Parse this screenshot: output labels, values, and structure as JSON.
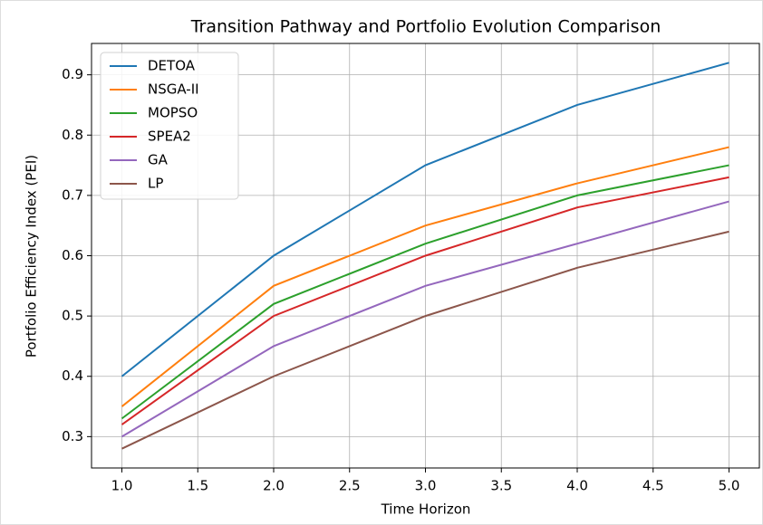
{
  "chart_data": {
    "type": "line",
    "title": "Transition Pathway and Portfolio Evolution Comparison",
    "x_label": "Time Horizon",
    "y_label": "Portfolio Efficiency Index (PEI)",
    "x": [
      1,
      2,
      3,
      4,
      5
    ],
    "series": [
      {
        "name": "DETOA",
        "color": "#1f77b4",
        "values": [
          0.4,
          0.6,
          0.75,
          0.85,
          0.92
        ]
      },
      {
        "name": "NSGA-II",
        "color": "#ff7f0e",
        "values": [
          0.35,
          0.55,
          0.65,
          0.72,
          0.78
        ]
      },
      {
        "name": "MOPSO",
        "color": "#2ca02c",
        "values": [
          0.33,
          0.52,
          0.62,
          0.7,
          0.75
        ]
      },
      {
        "name": "SPEA2",
        "color": "#d62728",
        "values": [
          0.32,
          0.5,
          0.6,
          0.68,
          0.73
        ]
      },
      {
        "name": "GA",
        "color": "#9467bd",
        "values": [
          0.3,
          0.45,
          0.55,
          0.62,
          0.69
        ]
      },
      {
        "name": "LP",
        "color": "#8c564b",
        "values": [
          0.28,
          0.4,
          0.5,
          0.58,
          0.64
        ]
      }
    ],
    "xlim": [
      0.8,
      5.2
    ],
    "ylim": [
      0.248,
      0.952
    ],
    "xticks": [
      {
        "value": 1,
        "label": "1.0"
      },
      1.5,
      {
        "value": 2,
        "label": "2.0"
      },
      2.5,
      {
        "value": 3,
        "label": "3.0"
      },
      3.5,
      {
        "value": 4,
        "label": "4.0"
      },
      4.5,
      {
        "value": 5,
        "label": "5.0"
      }
    ],
    "yticks": [
      0.3,
      0.4,
      0.5,
      0.6,
      0.7,
      0.8,
      0.9
    ],
    "grid": true,
    "legend": "upper left"
  }
}
